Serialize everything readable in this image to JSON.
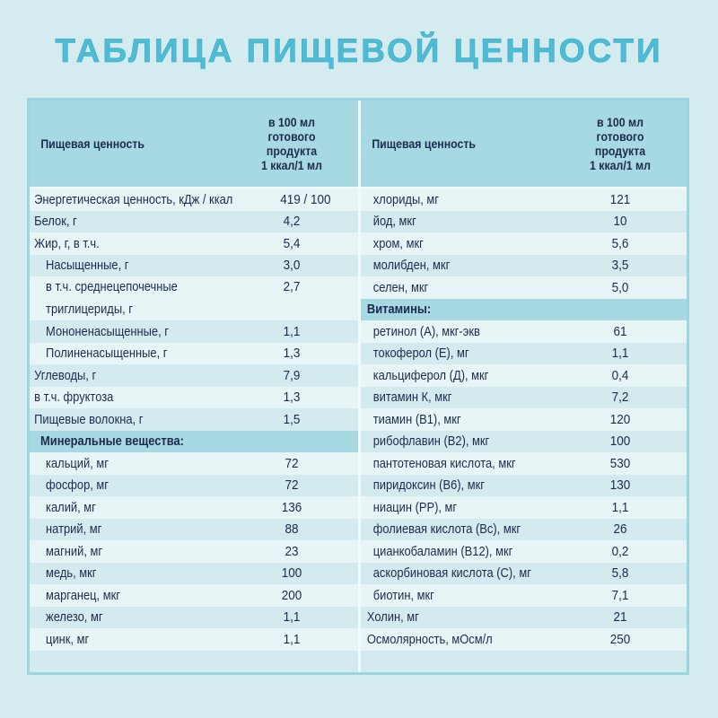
{
  "title": "ТАБЛИЦА ПИЩЕВОЙ ЦЕННОСТИ",
  "colors": {
    "background": "#d4ecf0",
    "title": "#4fbcd6",
    "header": "#a6d9e2",
    "row_light": "#e8f5f7",
    "row_dark": "#d3eaef",
    "text": "#1d2a4d",
    "border": "#9cd5df"
  },
  "table_header": {
    "name_col": "Пищевая ценность",
    "value_col": "в 100 мл\nготового\nпродукта\n1 ккал/1 мл"
  },
  "left": {
    "rows": [
      {
        "name": "Энергетическая ценность, кДж / ккал",
        "value": "419 / 100"
      },
      {
        "name": "Белок, г",
        "value": "4,2"
      },
      {
        "name": "Жир, г, в т.ч.",
        "value": "5,4"
      },
      {
        "name": "Насыщенные, г",
        "value": "3,0"
      },
      {
        "name": "в т.ч. среднецепочечные\nтриглицериды, г",
        "value": "2,7"
      },
      {
        "name": "Мононенасыщенные, г",
        "value": "1,1"
      },
      {
        "name": "Полиненасыщенные, г",
        "value": "1,3"
      },
      {
        "name": "Углеводы, г",
        "value": "7,9"
      },
      {
        "name": "в т.ч. фруктоза",
        "value": "1,3"
      },
      {
        "name": "Пищевые волокна, г",
        "value": "1,5"
      }
    ],
    "section_minerals": "Минеральные вещества:",
    "minerals": [
      {
        "name": "кальций, мг",
        "value": "72"
      },
      {
        "name": "фосфор, мг",
        "value": "72"
      },
      {
        "name": "калий, мг",
        "value": "136"
      },
      {
        "name": "натрий, мг",
        "value": "88"
      },
      {
        "name": "магний, мг",
        "value": "23"
      },
      {
        "name": "медь, мкг",
        "value": "100"
      },
      {
        "name": "марганец, мкг",
        "value": "200"
      },
      {
        "name": "железо, мг",
        "value": "1,1"
      },
      {
        "name": "цинк, мг",
        "value": "1,1"
      }
    ]
  },
  "right": {
    "minerals_cont": [
      {
        "name": "хлориды, мг",
        "value": "121"
      },
      {
        "name": "йод, мкг",
        "value": "10"
      },
      {
        "name": "хром, мкг",
        "value": "5,6"
      },
      {
        "name": "молибден, мкг",
        "value": "3,5"
      },
      {
        "name": "селен, мкг",
        "value": "5,0"
      }
    ],
    "section_vitamins": "Витамины:",
    "vitamins": [
      {
        "name": "ретинол (А), мкг-экв",
        "value": "61"
      },
      {
        "name": "токоферол (Е), мг",
        "value": "1,1"
      },
      {
        "name": "кальциферол (Д), мкг",
        "value": "0,4"
      },
      {
        "name": "витамин К, мкг",
        "value": "7,2"
      },
      {
        "name": "тиамин (В1), мкг",
        "value": "120"
      },
      {
        "name": "рибофлавин (В2), мкг",
        "value": "100"
      },
      {
        "name": "пантотеновая кислота, мкг",
        "value": "530"
      },
      {
        "name": "пиридоксин (В6), мкг",
        "value": "130"
      },
      {
        "name": "ниацин (РР), мг",
        "value": "1,1"
      },
      {
        "name": "фолиевая кислота (Вс), мкг",
        "value": "26"
      },
      {
        "name": "цианкобаламин (В12), мкг",
        "value": "0,2"
      },
      {
        "name": "аскорбиновая кислота (С), мг",
        "value": "5,8"
      },
      {
        "name": "биотин, мкг",
        "value": "7,1"
      }
    ],
    "other": [
      {
        "name": "Холин, мг",
        "value": "21"
      },
      {
        "name": "Осмолярность, мОсм/л",
        "value": "250"
      }
    ]
  }
}
